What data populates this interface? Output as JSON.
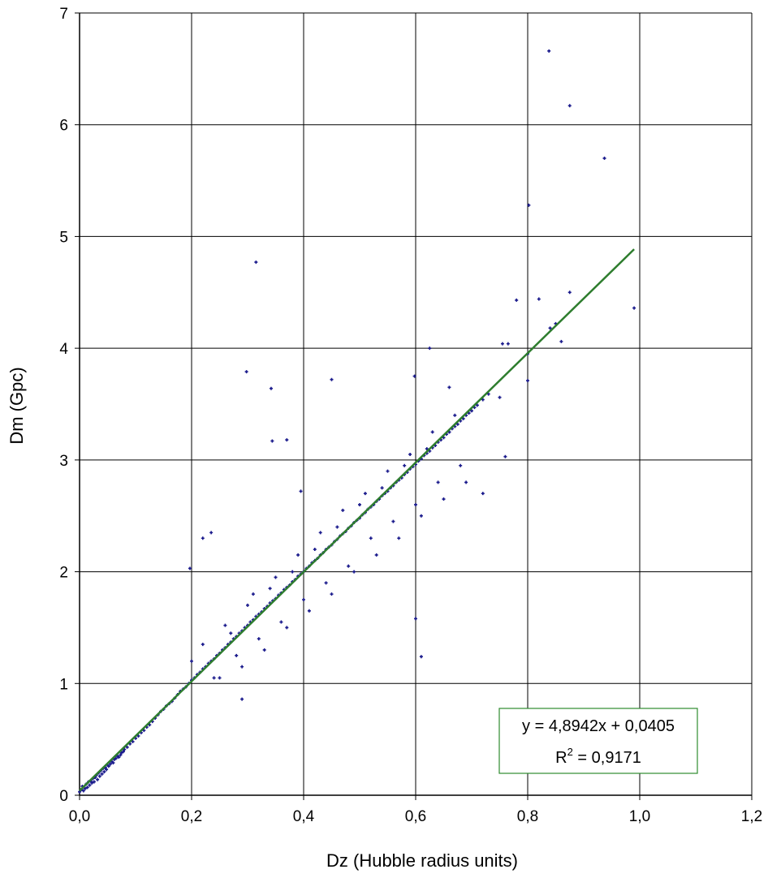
{
  "chart_data": {
    "type": "scatter",
    "xlabel": "Dz (Hubble radius units)",
    "ylabel": "Dm (Gpc)",
    "xlim": [
      0,
      1.2
    ],
    "ylim": [
      0,
      7
    ],
    "x_ticks": [
      "0,0",
      "0,2",
      "0,4",
      "0,6",
      "0,8",
      "1,0",
      "1,2"
    ],
    "y_ticks": [
      "0",
      "1",
      "2",
      "3",
      "4",
      "5",
      "6",
      "7"
    ],
    "grid": true,
    "marker_color": "#1a1a8c",
    "trendline": {
      "type": "linear",
      "slope": 4.8942,
      "intercept": 0.0405,
      "x_range": [
        0,
        0.99
      ],
      "color": "#2e7d2e",
      "equation_label": "y = 4,8942x + 0,0405",
      "r2_prefix": "R",
      "r2_exponent": "2",
      "r2_value": " = 0,9171",
      "legend_placement": "bottom-right",
      "box_color": "#2e8b2e"
    },
    "series": [
      {
        "x": [
          0.0,
          0.003,
          0.005,
          0.007,
          0.01,
          0.012,
          0.014,
          0.016,
          0.018,
          0.02,
          0.022,
          0.024,
          0.026,
          0.028,
          0.03,
          0.032,
          0.034,
          0.036,
          0.038,
          0.04,
          0.042,
          0.044,
          0.046,
          0.048,
          0.05,
          0.052,
          0.055,
          0.058,
          0.06,
          0.062,
          0.065,
          0.068,
          0.07,
          0.073,
          0.075,
          0.078,
          0.08,
          0.085,
          0.09,
          0.095,
          0.1,
          0.105,
          0.11,
          0.115,
          0.12,
          0.125,
          0.13,
          0.135,
          0.14,
          0.145,
          0.15,
          0.155,
          0.16,
          0.165,
          0.17,
          0.175,
          0.18,
          0.185,
          0.19,
          0.195,
          0.2,
          0.205,
          0.21,
          0.215,
          0.22,
          0.225,
          0.23,
          0.235,
          0.24,
          0.245,
          0.25,
          0.255,
          0.26,
          0.265,
          0.27,
          0.275,
          0.28,
          0.285,
          0.29,
          0.295,
          0.3,
          0.305,
          0.31,
          0.315,
          0.32,
          0.325,
          0.33,
          0.335,
          0.34,
          0.345,
          0.35,
          0.355,
          0.36,
          0.365,
          0.37,
          0.375,
          0.38,
          0.385,
          0.39,
          0.395,
          0.4,
          0.405,
          0.41,
          0.415,
          0.42,
          0.425,
          0.43,
          0.435,
          0.44,
          0.445,
          0.45,
          0.455,
          0.46,
          0.465,
          0.47,
          0.475,
          0.48,
          0.485,
          0.49,
          0.495,
          0.5,
          0.505,
          0.51,
          0.515,
          0.52,
          0.525,
          0.53,
          0.535,
          0.54,
          0.545,
          0.55,
          0.555,
          0.56,
          0.565,
          0.57,
          0.575,
          0.58,
          0.585,
          0.59,
          0.595,
          0.6,
          0.605,
          0.61,
          0.615,
          0.62,
          0.625,
          0.63,
          0.635,
          0.64,
          0.645,
          0.65,
          0.655,
          0.66,
          0.665,
          0.67,
          0.675,
          0.68,
          0.685,
          0.69,
          0.695,
          0.7,
          0.705,
          0.71,
          0.72,
          0.73,
          0.2,
          0.22,
          0.24,
          0.26,
          0.28,
          0.3,
          0.32,
          0.34,
          0.36,
          0.38,
          0.4,
          0.42,
          0.44,
          0.46,
          0.48,
          0.5,
          0.52,
          0.54,
          0.56,
          0.58,
          0.6,
          0.62,
          0.64,
          0.66,
          0.68,
          0.25,
          0.27,
          0.29,
          0.31,
          0.33,
          0.35,
          0.37,
          0.39,
          0.41,
          0.43,
          0.45,
          0.47,
          0.49,
          0.51,
          0.53,
          0.55,
          0.57,
          0.59,
          0.61,
          0.63,
          0.65,
          0.67,
          0.69,
          0.315,
          0.298,
          0.342,
          0.344,
          0.37,
          0.395,
          0.45,
          0.6,
          0.598,
          0.61,
          0.625,
          0.66,
          0.72,
          0.75,
          0.755,
          0.76,
          0.765,
          0.78,
          0.8,
          0.802,
          0.82,
          0.84,
          0.85,
          0.86,
          0.875,
          0.838,
          0.875,
          0.937,
          0.8,
          0.99,
          0.29,
          0.197,
          0.22,
          0.235
        ],
        "y": [
          0.03,
          0.05,
          0.08,
          0.04,
          0.06,
          0.1,
          0.07,
          0.12,
          0.09,
          0.13,
          0.11,
          0.15,
          0.12,
          0.16,
          0.18,
          0.14,
          0.2,
          0.17,
          0.22,
          0.19,
          0.24,
          0.21,
          0.25,
          0.23,
          0.27,
          0.26,
          0.28,
          0.3,
          0.29,
          0.32,
          0.33,
          0.35,
          0.34,
          0.36,
          0.38,
          0.39,
          0.41,
          0.43,
          0.46,
          0.48,
          0.51,
          0.53,
          0.56,
          0.58,
          0.61,
          0.63,
          0.66,
          0.69,
          0.72,
          0.75,
          0.77,
          0.8,
          0.82,
          0.84,
          0.87,
          0.9,
          0.93,
          0.95,
          0.97,
          1.0,
          1.03,
          1.05,
          1.08,
          1.1,
          1.13,
          1.15,
          1.18,
          1.2,
          1.22,
          1.25,
          1.27,
          1.3,
          1.32,
          1.35,
          1.37,
          1.4,
          1.42,
          1.45,
          1.47,
          1.5,
          1.52,
          1.55,
          1.57,
          1.6,
          1.62,
          1.64,
          1.67,
          1.69,
          1.72,
          1.74,
          1.76,
          1.79,
          1.81,
          1.84,
          1.86,
          1.88,
          1.91,
          1.93,
          1.96,
          1.98,
          2.0,
          2.03,
          2.05,
          2.08,
          2.1,
          2.12,
          2.15,
          2.17,
          2.2,
          2.22,
          2.24,
          2.27,
          2.29,
          2.32,
          2.34,
          2.36,
          2.39,
          2.41,
          2.44,
          2.46,
          2.48,
          2.51,
          2.53,
          2.56,
          2.58,
          2.6,
          2.63,
          2.65,
          2.68,
          2.7,
          2.72,
          2.75,
          2.77,
          2.8,
          2.82,
          2.84,
          2.87,
          2.89,
          2.92,
          2.94,
          2.96,
          2.99,
          3.01,
          3.04,
          3.06,
          3.08,
          3.11,
          3.13,
          3.16,
          3.18,
          3.2,
          3.23,
          3.25,
          3.28,
          3.3,
          3.32,
          3.35,
          3.37,
          3.4,
          3.42,
          3.44,
          3.47,
          3.49,
          3.54,
          3.59,
          1.2,
          1.35,
          1.05,
          1.52,
          1.25,
          1.7,
          1.4,
          1.85,
          1.55,
          2.0,
          1.75,
          2.2,
          1.9,
          2.4,
          2.05,
          2.6,
          2.3,
          2.75,
          2.45,
          2.95,
          2.6,
          3.1,
          2.8,
          3.25,
          2.95,
          1.05,
          1.45,
          1.15,
          1.8,
          1.3,
          1.95,
          1.5,
          2.15,
          1.65,
          2.35,
          1.8,
          2.55,
          2.0,
          2.7,
          2.15,
          2.9,
          2.3,
          3.05,
          2.5,
          3.25,
          2.65,
          3.4,
          2.8,
          4.77,
          3.79,
          3.64,
          3.17,
          3.18,
          2.72,
          3.72,
          1.58,
          3.75,
          1.24,
          4.0,
          3.65,
          2.7,
          3.56,
          4.04,
          3.03,
          4.04,
          4.43,
          3.71,
          5.28,
          4.44,
          4.18,
          4.22,
          4.06,
          4.5,
          6.66,
          6.17,
          5.7,
          3.95,
          4.36,
          0.86,
          2.03,
          2.3,
          2.35
        ]
      }
    ]
  }
}
